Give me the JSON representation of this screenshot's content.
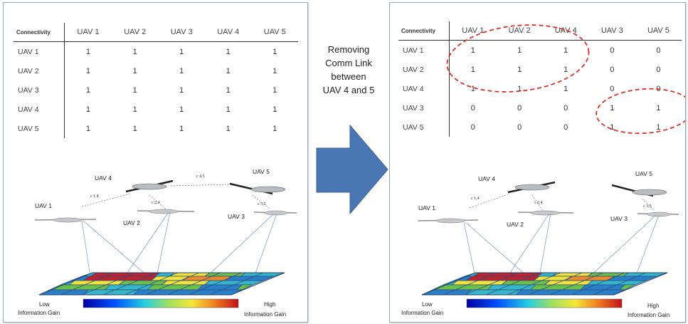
{
  "caption": {
    "line1": "Removing",
    "line2": "Comm Link",
    "line3": "between",
    "line4": "UAV 4 and 5"
  },
  "left_table": {
    "corner": "Connectivity",
    "columns": [
      "UAV 1",
      "UAV 2",
      "UAV 3",
      "UAV 4",
      "UAV 5"
    ],
    "rows": [
      {
        "label": "UAV 1",
        "cells": [
          "1",
          "1",
          "1",
          "1",
          "1"
        ]
      },
      {
        "label": "UAV 2",
        "cells": [
          "1",
          "1",
          "1",
          "1",
          "1"
        ]
      },
      {
        "label": "UAV 3",
        "cells": [
          "1",
          "1",
          "1",
          "1",
          "1"
        ]
      },
      {
        "label": "UAV 4",
        "cells": [
          "1",
          "1",
          "1",
          "1",
          "1"
        ]
      },
      {
        "label": "UAV 5",
        "cells": [
          "1",
          "1",
          "1",
          "1",
          "1"
        ]
      }
    ]
  },
  "right_table": {
    "corner": "Connectivity",
    "columns": [
      "UAV 1",
      "UAV 2",
      "UAV 4",
      "UAV 3",
      "UAV 5"
    ],
    "rows": [
      {
        "label": "UAV 1",
        "cells": [
          "1",
          "1",
          "1",
          "0",
          "0"
        ]
      },
      {
        "label": "UAV 2",
        "cells": [
          "1",
          "1",
          "1",
          "0",
          "0"
        ]
      },
      {
        "label": "UAV 4",
        "cells": [
          "1",
          "1",
          "1",
          "0",
          "0"
        ]
      },
      {
        "label": "UAV 3",
        "cells": [
          "0",
          "0",
          "0",
          "1",
          "1"
        ]
      },
      {
        "label": "UAV 5",
        "cells": [
          "0",
          "0",
          "0",
          "1",
          "1"
        ]
      }
    ]
  },
  "scene": {
    "uav1": "UAV 1",
    "uav2": "UAV 2",
    "uav3": "UAV 3",
    "uav4": "UAV 4",
    "uav5": "UAV 5",
    "low_gain_line1": "Low",
    "low_gain_line2": "Information Gain",
    "high_gain_line1": "High",
    "high_gain_line2": "Information Gain"
  },
  "colors": {
    "arrow": "#4a76b4",
    "circle": "#d9342b",
    "heat_red": "#c0212a",
    "heat_yellow": "#f2e33a",
    "heat_orange": "#ee8a2a",
    "heat_green": "#6cc04a",
    "heat_cyan": "#36b7c9",
    "heat_blue": "#2a7fc9"
  }
}
